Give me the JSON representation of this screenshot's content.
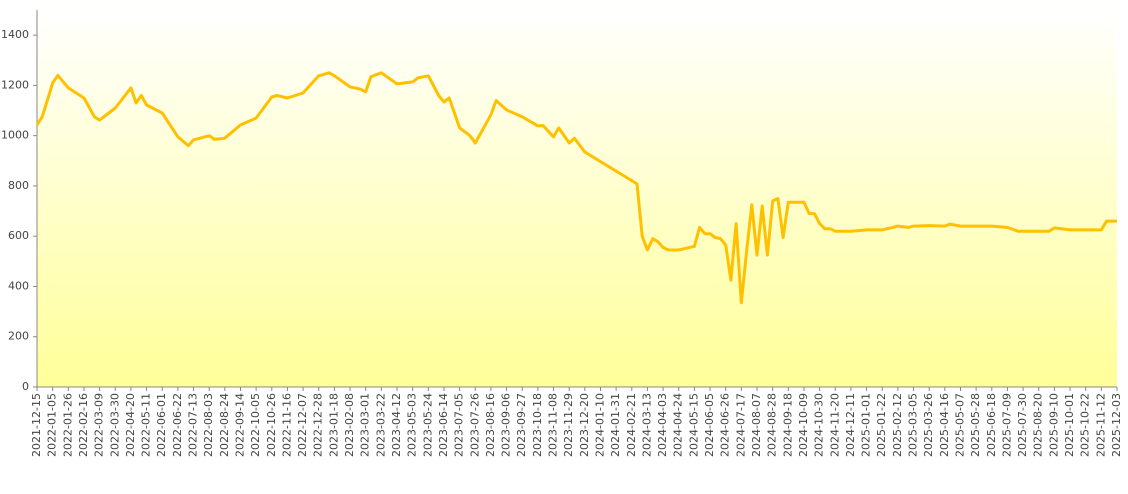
{
  "chart_data": {
    "type": "line",
    "x": [
      "2021-12-15",
      "2021-12-22",
      "2022-01-05",
      "2022-01-12",
      "2022-01-26",
      "2022-02-16",
      "2022-03-02",
      "2022-03-09",
      "2022-03-30",
      "2022-04-20",
      "2022-04-27",
      "2022-05-04",
      "2022-05-11",
      "2022-06-01",
      "2022-06-22",
      "2022-07-06",
      "2022-07-13",
      "2022-08-03",
      "2022-08-10",
      "2022-08-24",
      "2022-09-14",
      "2022-10-05",
      "2022-10-26",
      "2022-11-02",
      "2022-11-16",
      "2022-12-07",
      "2022-12-28",
      "2023-01-11",
      "2023-01-18",
      "2023-02-08",
      "2023-02-22",
      "2023-03-01",
      "2023-03-08",
      "2023-03-22",
      "2023-04-12",
      "2023-05-03",
      "2023-05-10",
      "2023-05-24",
      "2023-06-07",
      "2023-06-14",
      "2023-06-21",
      "2023-07-05",
      "2023-07-19",
      "2023-07-26",
      "2023-08-16",
      "2023-08-23",
      "2023-09-06",
      "2023-09-27",
      "2023-10-18",
      "2023-10-25",
      "2023-11-08",
      "2023-11-15",
      "2023-11-29",
      "2023-12-06",
      "2023-12-20",
      "2024-02-28",
      "2024-03-06",
      "2024-03-13",
      "2024-03-20",
      "2024-03-27",
      "2024-04-03",
      "2024-04-10",
      "2024-04-24",
      "2024-05-15",
      "2024-05-22",
      "2024-05-29",
      "2024-06-05",
      "2024-06-12",
      "2024-06-19",
      "2024-06-26",
      "2024-07-03",
      "2024-07-10",
      "2024-07-17",
      "2024-07-24",
      "2024-07-31",
      "2024-08-07",
      "2024-08-14",
      "2024-08-21",
      "2024-08-28",
      "2024-09-04",
      "2024-09-11",
      "2024-09-18",
      "2024-10-02",
      "2024-10-09",
      "2024-10-16",
      "2024-10-23",
      "2024-10-30",
      "2024-11-06",
      "2024-11-13",
      "2024-11-20",
      "2024-12-11",
      "2025-01-01",
      "2025-01-22",
      "2025-02-05",
      "2025-02-12",
      "2025-02-26",
      "2025-03-05",
      "2025-03-26",
      "2025-04-16",
      "2025-04-23",
      "2025-05-07",
      "2025-06-18",
      "2025-07-09",
      "2025-07-23",
      "2025-08-20",
      "2025-09-03",
      "2025-09-10",
      "2025-10-01",
      "2025-10-22",
      "2025-11-12",
      "2025-11-19",
      "2025-12-03"
    ],
    "values": [
      1043,
      1075,
      1210,
      1240,
      1190,
      1150,
      1075,
      1062,
      1110,
      1190,
      1130,
      1160,
      1122,
      1090,
      995,
      960,
      983,
      1000,
      985,
      990,
      1043,
      1070,
      1154,
      1160,
      1150,
      1170,
      1238,
      1250,
      1238,
      1194,
      1185,
      1174,
      1235,
      1250,
      1206,
      1214,
      1230,
      1238,
      1160,
      1134,
      1150,
      1031,
      1000,
      971,
      1083,
      1140,
      1102,
      1075,
      1039,
      1040,
      995,
      1031,
      971,
      990,
      935,
      808,
      600,
      545,
      590,
      578,
      555,
      545,
      545,
      560,
      635,
      610,
      610,
      595,
      590,
      565,
      425,
      650,
      335,
      540,
      725,
      525,
      720,
      525,
      740,
      750,
      595,
      735,
      735,
      735,
      690,
      690,
      650,
      630,
      630,
      620,
      620,
      625,
      625,
      635,
      640,
      635,
      640,
      642,
      640,
      648,
      640,
      640,
      635,
      620,
      620,
      620,
      633,
      625,
      625,
      625,
      660,
      660
    ],
    "color": "#ffc000",
    "xticks": [
      "2021-12-15",
      "2022-01-05",
      "2022-01-26",
      "2022-02-16",
      "2022-03-09",
      "2022-03-30",
      "2022-04-20",
      "2022-05-11",
      "2022-06-01",
      "2022-06-22",
      "2022-07-13",
      "2022-08-03",
      "2022-08-24",
      "2022-09-14",
      "2022-10-05",
      "2022-10-26",
      "2022-11-16",
      "2022-12-07",
      "2022-12-28",
      "2023-01-18",
      "2023-02-08",
      "2023-03-01",
      "2023-03-22",
      "2023-04-12",
      "2023-05-03",
      "2023-05-24",
      "2023-06-14",
      "2023-07-05",
      "2023-07-26",
      "2023-08-16",
      "2023-09-06",
      "2023-09-27",
      "2023-10-18",
      "2023-11-08",
      "2023-11-29",
      "2023-12-20",
      "2024-01-10",
      "2024-01-31",
      "2024-02-21",
      "2024-03-13",
      "2024-04-03",
      "2024-04-24",
      "2024-05-15",
      "2024-06-05",
      "2024-06-26",
      "2024-07-17",
      "2024-08-07",
      "2024-08-28",
      "2024-09-18",
      "2024-10-09",
      "2024-10-30",
      "2024-11-20",
      "2024-12-11",
      "2025-01-01",
      "2025-01-22",
      "2025-02-12",
      "2025-03-05",
      "2025-03-26",
      "2025-04-16",
      "2025-05-07",
      "2025-05-28",
      "2025-06-18",
      "2025-07-09",
      "2025-07-30",
      "2025-08-20",
      "2025-09-10",
      "2025-10-01",
      "2025-10-22",
      "2025-11-12",
      "2025-12-03"
    ],
    "ylim": [
      0,
      1500
    ],
    "yticks": [
      0,
      200,
      400,
      600,
      800,
      1000,
      1200,
      1400
    ]
  }
}
